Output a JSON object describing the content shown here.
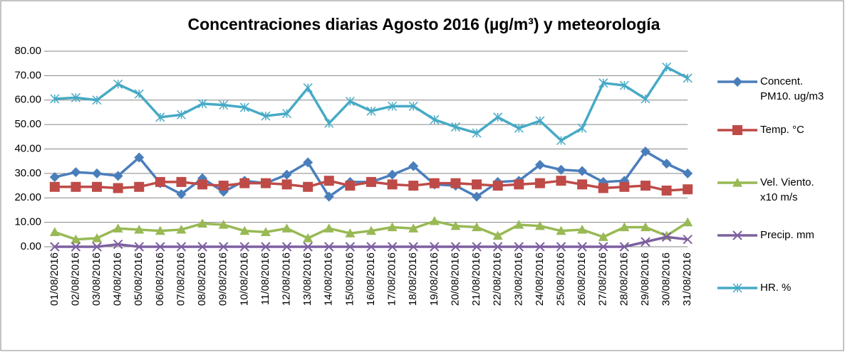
{
  "chart_data": {
    "type": "line",
    "title": "Concentraciones diarias Agosto 2016 (µg/m³) y meteorología",
    "categories": [
      "01/08/2016",
      "02/08/2016",
      "03/08/2016",
      "04/08/2016",
      "05/08/2016",
      "06/08/2016",
      "07/08/2016",
      "08/08/2016",
      "09/08/2016",
      "10/08/2016",
      "11/08/2016",
      "12/08/2016",
      "13/08/2016",
      "14/08/2016",
      "15/08/2016",
      "16/08/2016",
      "17/08/2016",
      "18/08/2016",
      "19/08/2016",
      "20/08/2016",
      "21/08/2016",
      "22/08/2016",
      "23/08/2016",
      "24/08/2016",
      "25/08/2016",
      "26/08/2016",
      "27/08/2016",
      "28/08/2016",
      "29/08/2016",
      "30/08/2016",
      "31/08/2016"
    ],
    "series": [
      {
        "name": "Concent. PM10. ug/m3",
        "color": "#4a7ebb",
        "marker": "diamond",
        "values": [
          28.5,
          30.5,
          30,
          29,
          36.5,
          26,
          21.5,
          28,
          22.5,
          27,
          26,
          29.5,
          34.5,
          20.5,
          26.5,
          26.5,
          29.5,
          33,
          25.5,
          25,
          20.5,
          26.5,
          27,
          33.5,
          31.5,
          31,
          26.5,
          27,
          39,
          34,
          30
        ]
      },
      {
        "name": "Temp. °C",
        "color": "#be4b48",
        "marker": "square",
        "values": [
          24.5,
          24.5,
          24.5,
          24,
          24.5,
          26.5,
          26.5,
          25.5,
          25,
          26,
          26,
          25.5,
          24.5,
          27,
          25,
          26.5,
          25.5,
          25,
          26,
          26,
          25.5,
          25,
          25.5,
          26,
          27,
          25.5,
          24,
          24.5,
          25,
          23,
          23.5
        ]
      },
      {
        "name": "Vel. Viento. x10 m/s",
        "color": "#98b954",
        "marker": "triangle",
        "values": [
          6,
          3,
          3.5,
          7.5,
          7,
          6.5,
          7,
          9.5,
          9,
          6.5,
          6,
          7.5,
          3.5,
          7.5,
          5.5,
          6.5,
          8,
          7.5,
          10.5,
          8.5,
          8,
          4.5,
          9,
          8.5,
          6.5,
          7,
          4,
          8,
          8,
          4.5,
          10
        ]
      },
      {
        "name": "Precip. mm",
        "color": "#7d60a0",
        "marker": "x",
        "values": [
          0,
          0,
          0,
          1,
          0,
          0,
          0,
          0,
          0,
          0,
          0,
          0,
          0,
          0,
          0,
          0,
          0,
          0,
          0,
          0,
          0,
          0,
          0,
          0,
          0,
          0,
          0,
          0,
          2,
          4,
          3
        ]
      },
      {
        "name": "HR. %",
        "color": "#46aac5",
        "marker": "star",
        "values": [
          60.5,
          61,
          60,
          66.5,
          62.5,
          53,
          54,
          58.5,
          58,
          57,
          53.5,
          54.5,
          65,
          50.5,
          59.5,
          55.5,
          57.5,
          57.5,
          52,
          49,
          46.5,
          53,
          48.5,
          51.5,
          43.5,
          48.5,
          67,
          66,
          60.5,
          73.5,
          69
        ]
      }
    ],
    "ylim": [
      0,
      80
    ],
    "yticks": [
      {
        "value": 0,
        "label": "0.00"
      },
      {
        "value": 10,
        "label": "10.00"
      },
      {
        "value": 20,
        "label": "20.00"
      },
      {
        "value": 30,
        "label": "30.00"
      },
      {
        "value": 40,
        "label": "40.00"
      },
      {
        "value": 50,
        "label": "50.00"
      },
      {
        "value": 60,
        "label": "60.00"
      },
      {
        "value": 70,
        "label": "70.00"
      },
      {
        "value": 80,
        "label": "80.00"
      }
    ],
    "grid": true,
    "legend": "right"
  }
}
